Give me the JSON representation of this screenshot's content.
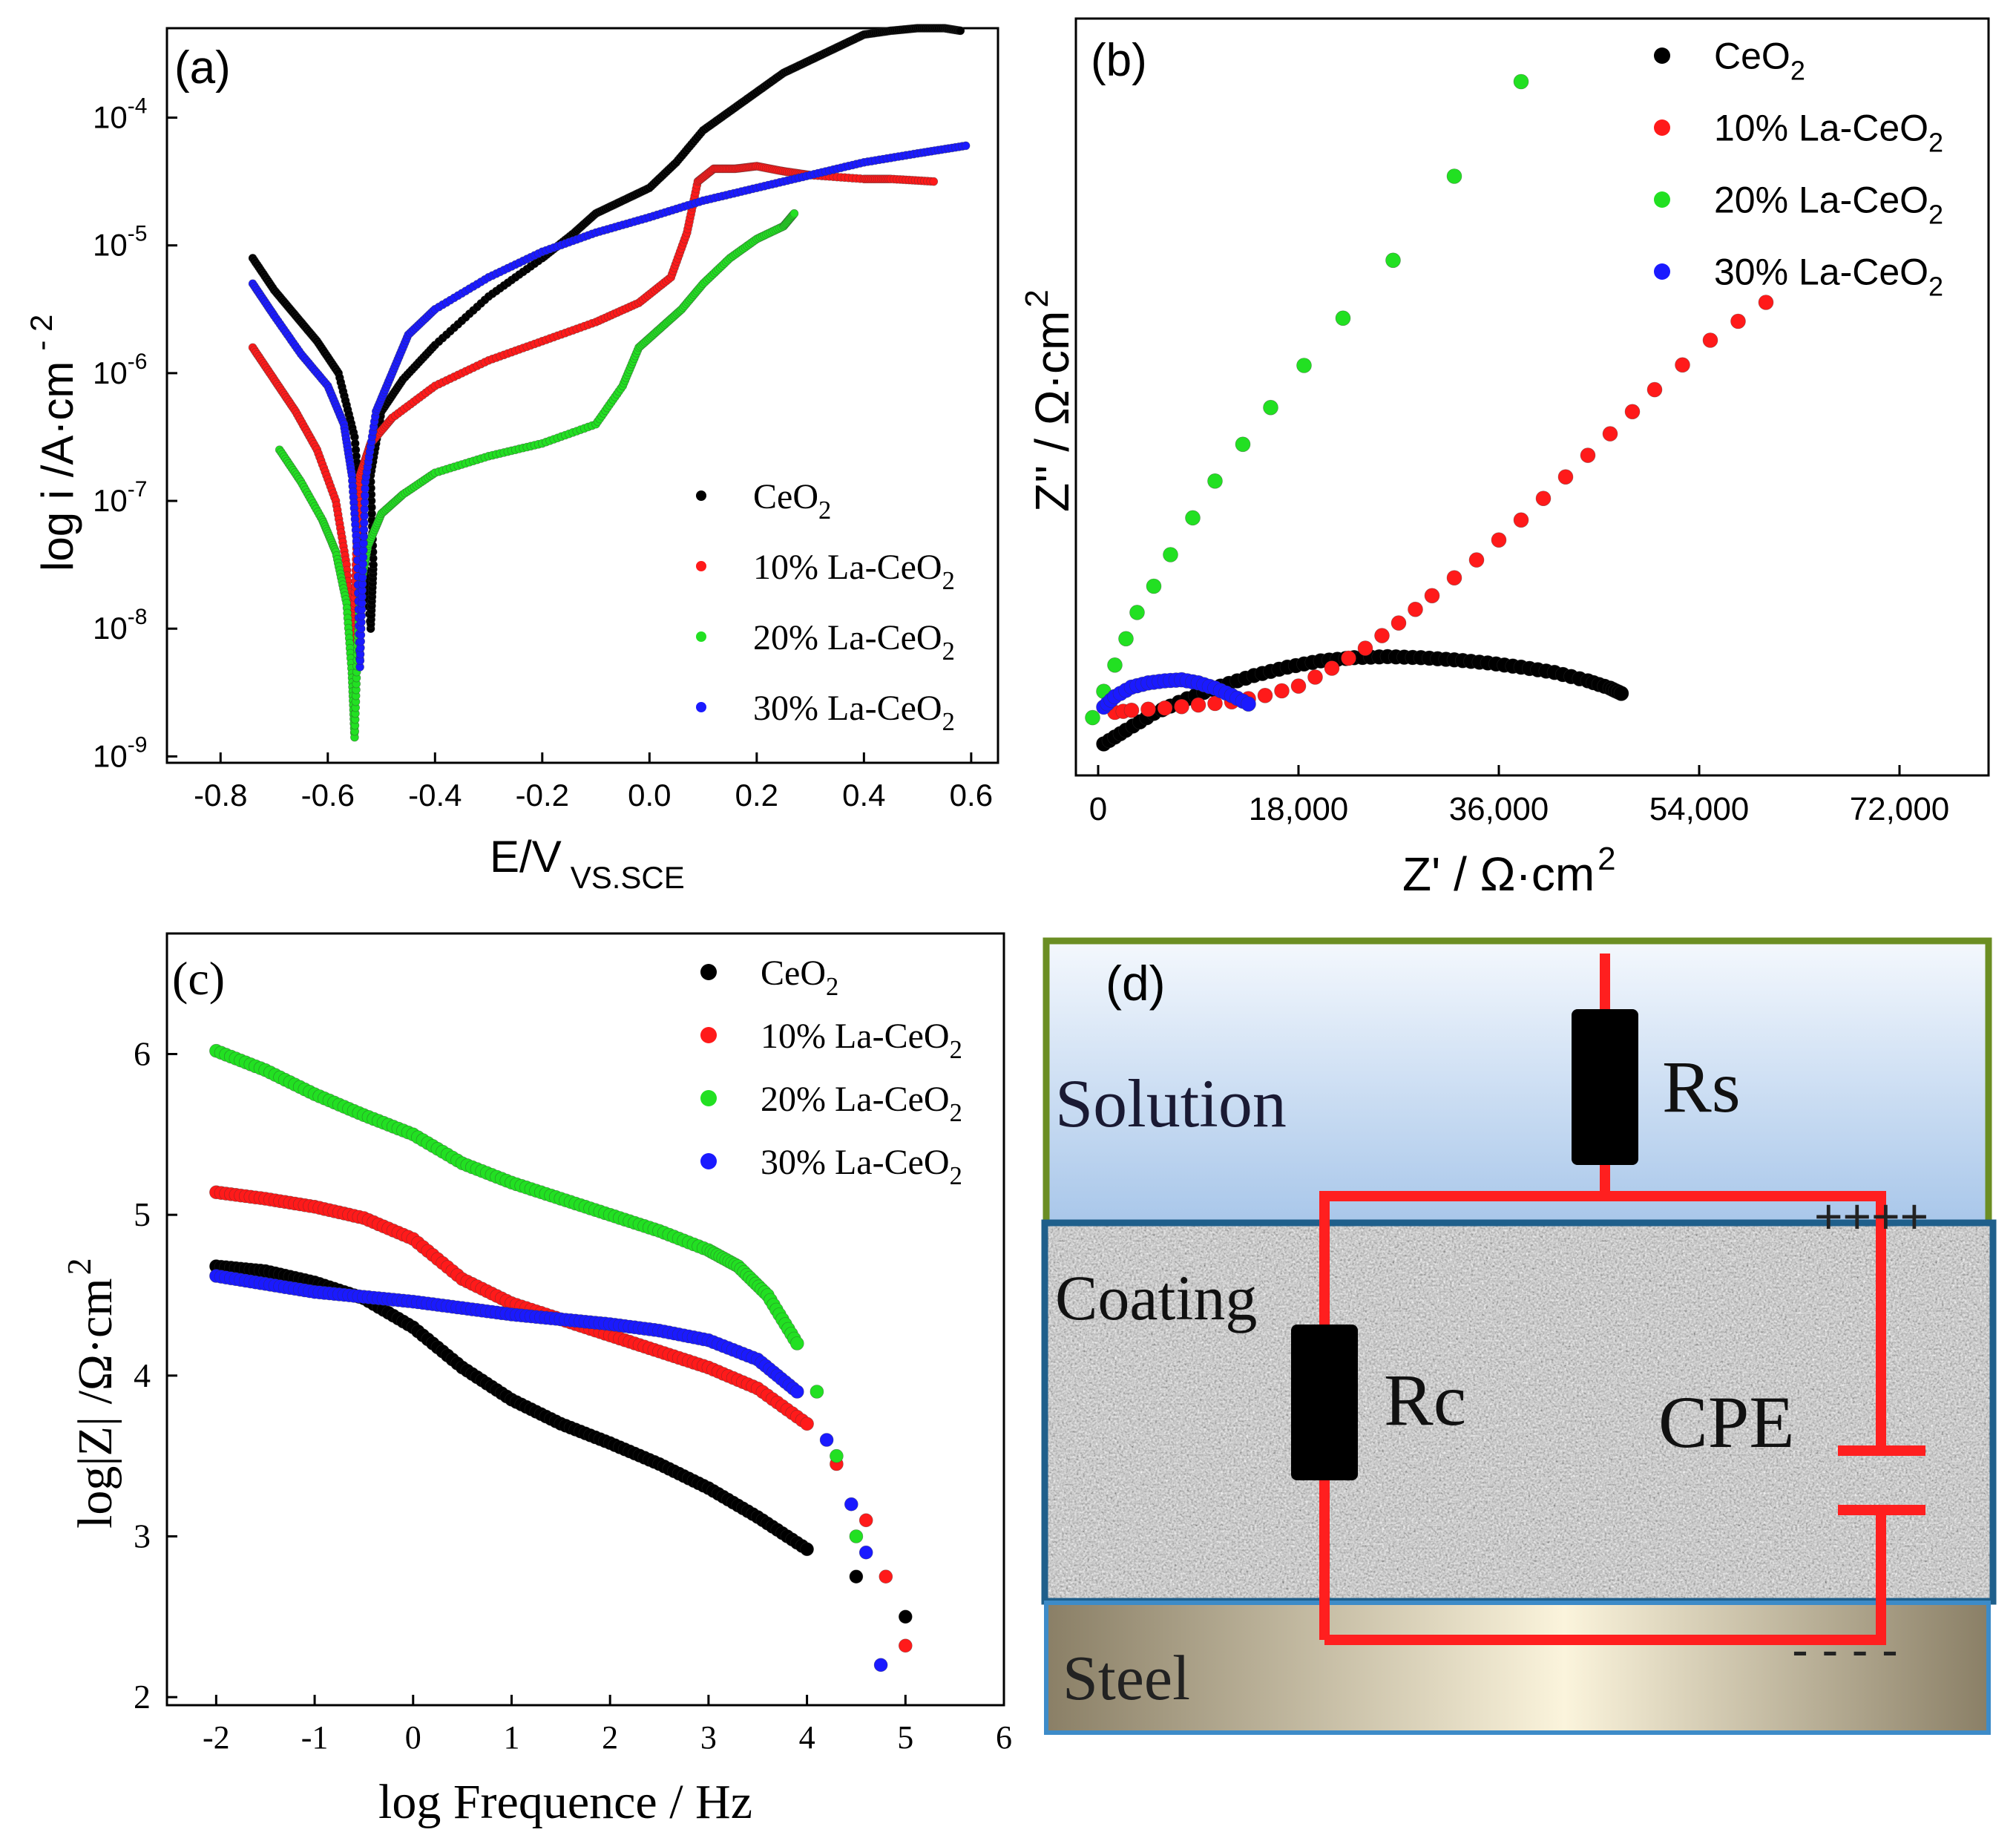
{
  "colors": {
    "CeO2": "#000000",
    "La10": "#ff1a1a",
    "La20": "#22e022",
    "La30": "#1a1aff",
    "circuit": "#ff1f1f",
    "solution_border": "#6b8e23",
    "coating_border": "#1f5f8b",
    "steel_border": "#3d8bc8"
  },
  "series_names": [
    "CeO",
    "10% La-CeO",
    "20% La-CeO",
    "30% La-CeO"
  ],
  "subscript_2": "2",
  "chart_data": [
    {
      "id": "a",
      "type": "scatter",
      "panel_label": "(a)",
      "xlabel": "E/V",
      "xlabel_sub": "VS.SCE",
      "ylabel": "log i /A·cm",
      "ylabel_sup": "- 2",
      "yscale": "log",
      "xlim": [
        -0.9,
        0.65
      ],
      "ylim": [
        -9.05,
        -3.3
      ],
      "x_ticks": [
        "-0.8",
        "-0.6",
        "-0.4",
        "-0.2",
        "0.0",
        "0.2",
        "0.4",
        "0.6"
      ],
      "y_ticks": [
        {
          "base": "10",
          "exp": "-9"
        },
        {
          "base": "10",
          "exp": "-8"
        },
        {
          "base": "10",
          "exp": "-7"
        },
        {
          "base": "10",
          "exp": "-6"
        },
        {
          "base": "10",
          "exp": "-5"
        },
        {
          "base": "10",
          "exp": "-4"
        }
      ],
      "legend_position": "lower-right",
      "series": [
        {
          "name": "CeO2",
          "x": [
            -0.74,
            -0.7,
            -0.66,
            -0.62,
            -0.58,
            -0.55,
            -0.535,
            -0.52,
            -0.515,
            -0.52,
            -0.5,
            -0.46,
            -0.4,
            -0.3,
            -0.2,
            -0.14,
            -0.1,
            -0.05,
            0.0,
            0.05,
            0.1,
            0.15,
            0.2,
            0.25,
            0.3,
            0.35,
            0.4,
            0.45,
            0.5,
            0.55,
            0.58
          ],
          "log_i": [
            -5.1,
            -5.35,
            -5.55,
            -5.75,
            -6.0,
            -6.5,
            -7.2,
            -8.0,
            -7.5,
            -6.8,
            -6.3,
            -6.05,
            -5.78,
            -5.4,
            -5.1,
            -4.9,
            -4.75,
            -4.65,
            -4.55,
            -4.35,
            -4.1,
            -3.95,
            -3.8,
            -3.65,
            -3.55,
            -3.45,
            -3.35,
            -3.32,
            -3.3,
            -3.3,
            -3.32
          ]
        },
        {
          "name": "10% La-CeO2",
          "x": [
            -0.74,
            -0.7,
            -0.66,
            -0.62,
            -0.585,
            -0.565,
            -0.555,
            -0.55,
            -0.545,
            -0.54,
            -0.52,
            -0.48,
            -0.4,
            -0.3,
            -0.2,
            -0.1,
            -0.02,
            0.04,
            0.07,
            0.09,
            0.12,
            0.16,
            0.2,
            0.25,
            0.3,
            0.4,
            0.45,
            0.53
          ],
          "log_i": [
            -5.8,
            -6.05,
            -6.3,
            -6.6,
            -7.0,
            -7.5,
            -8.1,
            -7.8,
            -7.2,
            -6.8,
            -6.55,
            -6.35,
            -6.1,
            -5.9,
            -5.75,
            -5.6,
            -5.45,
            -5.25,
            -4.9,
            -4.5,
            -4.4,
            -4.4,
            -4.38,
            -4.42,
            -4.45,
            -4.48,
            -4.48,
            -4.5
          ]
        },
        {
          "name": "20% La-CeO2",
          "x": [
            -0.69,
            -0.65,
            -0.61,
            -0.585,
            -0.565,
            -0.555,
            -0.55,
            -0.545,
            -0.54,
            -0.525,
            -0.5,
            -0.46,
            -0.4,
            -0.3,
            -0.2,
            -0.1,
            -0.05,
            -0.02,
            0.02,
            0.06,
            0.1,
            0.15,
            0.2,
            0.25,
            0.27
          ],
          "log_i": [
            -6.6,
            -6.85,
            -7.15,
            -7.4,
            -7.8,
            -8.35,
            -8.85,
            -8.2,
            -7.7,
            -7.35,
            -7.1,
            -6.95,
            -6.78,
            -6.65,
            -6.55,
            -6.4,
            -6.1,
            -5.8,
            -5.65,
            -5.5,
            -5.3,
            -5.1,
            -4.95,
            -4.85,
            -4.75
          ]
        },
        {
          "name": "30% La-CeO2",
          "x": [
            -0.74,
            -0.7,
            -0.65,
            -0.6,
            -0.57,
            -0.555,
            -0.545,
            -0.54,
            -0.535,
            -0.53,
            -0.51,
            -0.48,
            -0.45,
            -0.4,
            -0.3,
            -0.2,
            -0.1,
            0.0,
            0.1,
            0.2,
            0.3,
            0.4,
            0.5,
            0.59
          ],
          "log_i": [
            -5.3,
            -5.55,
            -5.85,
            -6.1,
            -6.4,
            -6.8,
            -7.4,
            -8.3,
            -7.6,
            -6.85,
            -6.3,
            -6.0,
            -5.7,
            -5.5,
            -5.25,
            -5.05,
            -4.9,
            -4.78,
            -4.65,
            -4.55,
            -4.45,
            -4.35,
            -4.28,
            -4.22
          ]
        }
      ]
    },
    {
      "id": "b",
      "type": "scatter",
      "panel_label": "(b)",
      "xlabel": "Z' / Ω·cm",
      "xlabel_sup": "2",
      "ylabel": "Z'' / Ω·cm",
      "ylabel_sup": "2",
      "xlim": [
        -2000,
        80000
      ],
      "ylim": [
        -2000,
        70000
      ],
      "x_ticks": [
        "0",
        "18,000",
        "36,000",
        "54,000",
        "72,000"
      ],
      "legend_position": "top-right",
      "series": [
        {
          "name": "CeO2",
          "x": [
            500,
            2500,
            5000,
            8000,
            11000,
            14000,
            17000,
            20000,
            23000,
            26000,
            29000,
            32000,
            35000,
            38000,
            41000,
            44000,
            46000,
            47000
          ],
          "y": [
            1000,
            2300,
            3900,
            5300,
            6500,
            7500,
            8300,
            8900,
            9200,
            9300,
            9200,
            9000,
            8700,
            8300,
            7800,
            7000,
            6300,
            5800
          ]
        },
        {
          "name": "10% La-CeO2",
          "x": [
            1500,
            3000,
            6000,
            9000,
            12000,
            15000,
            18000,
            21000,
            24000,
            27000,
            30000,
            34000,
            38000,
            42000,
            46000,
            50000,
            55000,
            60000
          ],
          "y": [
            4000,
            4200,
            4400,
            4700,
            5000,
            5600,
            6500,
            8200,
            10100,
            12500,
            15100,
            18500,
            22300,
            26400,
            30500,
            34700,
            39400,
            43000
          ]
        },
        {
          "name": "20% La-CeO2",
          "x": [
            -500,
            500,
            1500,
            2500,
            3500,
            5000,
            6500,
            8500,
            10500,
            13000,
            15500,
            18500,
            22000,
            26500,
            32000,
            38000
          ],
          "y": [
            3500,
            6000,
            8500,
            11000,
            13500,
            16000,
            19000,
            22500,
            26000,
            29500,
            33000,
            37000,
            41500,
            47000,
            55000,
            64000
          ]
        },
        {
          "name": "30% La-CeO2",
          "x": [
            500,
            1500,
            3000,
            4500,
            6000,
            7500,
            9000,
            10500,
            12000,
            13500
          ],
          "y": [
            4500,
            5500,
            6400,
            6800,
            7000,
            7100,
            6800,
            6300,
            5600,
            4800
          ]
        }
      ]
    },
    {
      "id": "c",
      "type": "scatter",
      "panel_label": "(c)",
      "xlabel": "log Frequence / Hz",
      "ylabel": "log|Z| /Ω·cm",
      "ylabel_sup": "2",
      "xlim": [
        -2.5,
        6
      ],
      "ylim": [
        1.95,
        6.75
      ],
      "x_ticks": [
        "-2",
        "-1",
        "0",
        "1",
        "2",
        "3",
        "4",
        "5",
        "6"
      ],
      "y_ticks": [
        "2",
        "3",
        "4",
        "5",
        "6"
      ],
      "legend_position": "top-right",
      "series": [
        {
          "name": "CeO2",
          "x": [
            -2,
            -1.5,
            -1,
            -0.5,
            0,
            0.5,
            1,
            1.5,
            2,
            2.5,
            3,
            3.5,
            4,
            4.5,
            5
          ],
          "y": [
            4.68,
            4.65,
            4.58,
            4.48,
            4.3,
            4.05,
            3.85,
            3.7,
            3.58,
            3.45,
            3.3,
            3.12,
            2.92,
            2.75,
            2.5
          ]
        },
        {
          "name": "10% La-CeO2",
          "x": [
            -2,
            -1.5,
            -1,
            -0.5,
            0,
            0.5,
            1,
            1.5,
            2,
            2.5,
            3,
            3.5,
            4,
            4.3,
            4.6,
            4.8,
            5
          ],
          "y": [
            5.14,
            5.1,
            5.05,
            4.98,
            4.85,
            4.6,
            4.45,
            4.35,
            4.25,
            4.15,
            4.05,
            3.92,
            3.7,
            3.45,
            3.1,
            2.75,
            2.32
          ]
        },
        {
          "name": "20% La-CeO2",
          "x": [
            -2,
            -1.5,
            -1,
            -0.5,
            0,
            0.5,
            1,
            1.5,
            2,
            2.5,
            3,
            3.3,
            3.6,
            3.9,
            4.1,
            4.3,
            4.5
          ],
          "y": [
            6.02,
            5.9,
            5.75,
            5.62,
            5.5,
            5.32,
            5.2,
            5.1,
            5.0,
            4.9,
            4.78,
            4.68,
            4.5,
            4.2,
            3.9,
            3.5,
            3.0
          ]
        },
        {
          "name": "30% La-CeO2",
          "x": [
            -2,
            -1.5,
            -1,
            -0.5,
            0,
            0.5,
            1,
            1.5,
            2,
            2.5,
            3,
            3.5,
            3.9,
            4.2,
            4.45,
            4.6,
            4.75
          ],
          "y": [
            4.62,
            4.57,
            4.52,
            4.49,
            4.46,
            4.42,
            4.38,
            4.35,
            4.32,
            4.28,
            4.22,
            4.1,
            3.9,
            3.6,
            3.2,
            2.9,
            2.2
          ]
        }
      ]
    }
  ],
  "diagram_d": {
    "panel_label": "(d)",
    "solution_label": "Solution",
    "coating_label": "Coating",
    "steel_label": "Steel",
    "rs_label": "Rs",
    "rc_label": "Rc",
    "cpe_label": "CPE",
    "plus_signs": "++++",
    "minus_signs": "- - - -"
  }
}
